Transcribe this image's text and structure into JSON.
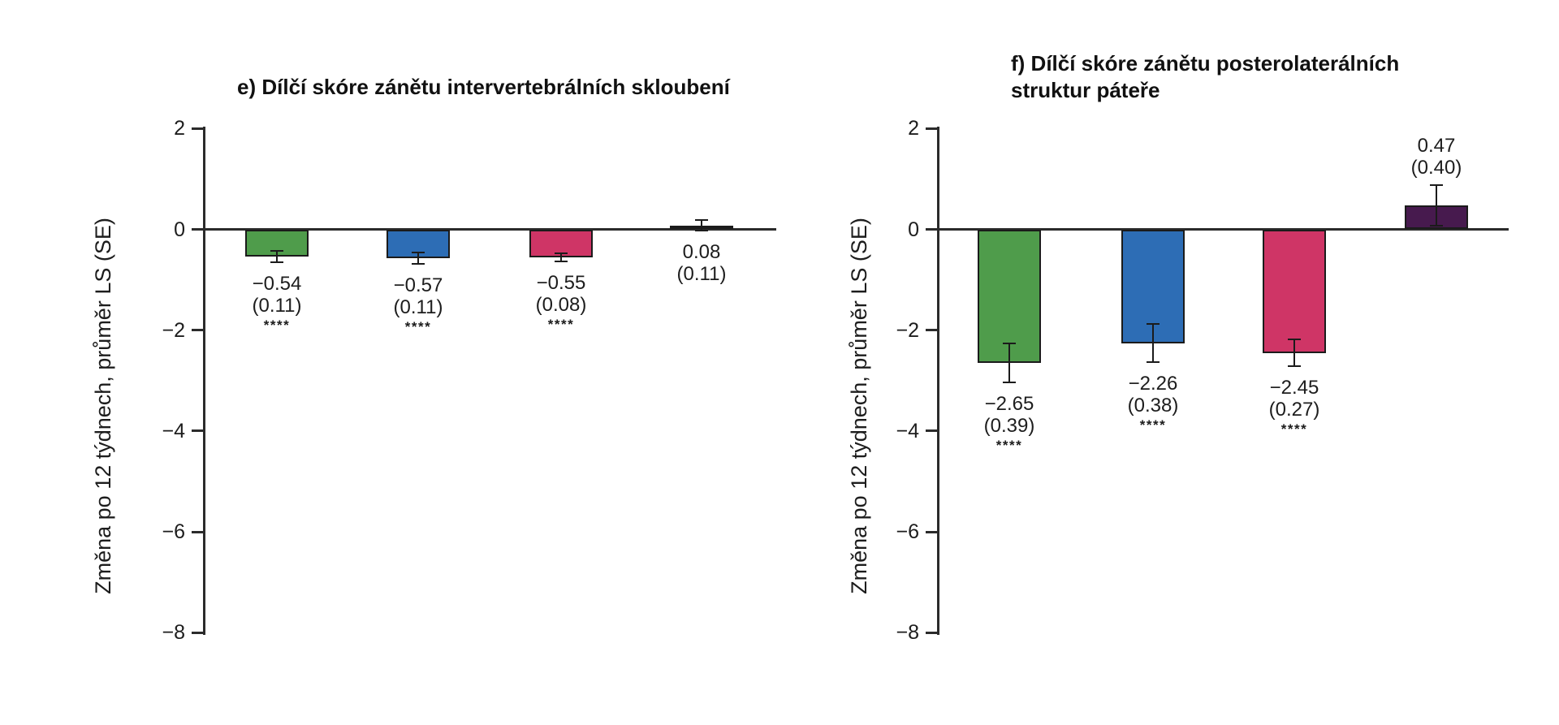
{
  "figure": {
    "background_color": "#ffffff",
    "axis_color": "#2b2b2b",
    "text_color": "#1d1d1d",
    "bar_border_color": "#1b1b1b"
  },
  "chart_data": [
    {
      "type": "bar",
      "panel": "e",
      "title_lines": [
        "e) Dílčí skóre zánětu intervertebrálních skloubení"
      ],
      "ylabel": "Změna po 12 týdnech, průměr LS (SE)",
      "ylim": [
        -8,
        2
      ],
      "yticks": [
        2,
        0,
        -2,
        -4,
        -6,
        -8
      ],
      "grid": false,
      "legend": "none",
      "bars": [
        {
          "value": -0.54,
          "se": 0.11,
          "value_label": "−0.54",
          "se_label": "(0.11)",
          "significance": "****",
          "color": "#4f9c4b"
        },
        {
          "value": -0.57,
          "se": 0.11,
          "value_label": "−0.57",
          "se_label": "(0.11)",
          "significance": "****",
          "color": "#2d6db5"
        },
        {
          "value": -0.55,
          "se": 0.08,
          "value_label": "−0.55",
          "se_label": "(0.08)",
          "significance": "****",
          "color": "#cf3566"
        },
        {
          "value": 0.08,
          "se": 0.11,
          "value_label": "0.08",
          "se_label": "(0.11)",
          "significance": "",
          "color": "#471a4e"
        }
      ]
    },
    {
      "type": "bar",
      "panel": "f",
      "title_lines": [
        "f) Dílčí skóre zánětu posterolaterálních",
        "struktur páteře"
      ],
      "ylabel": "Změna po 12 týdnech, průměr LS (SE)",
      "ylim": [
        -8,
        2
      ],
      "yticks": [
        2,
        0,
        -2,
        -4,
        -6,
        -8
      ],
      "grid": false,
      "legend": "none",
      "bars": [
        {
          "value": -2.65,
          "se": 0.39,
          "value_label": "−2.65",
          "se_label": "(0.39)",
          "significance": "****",
          "color": "#4f9c4b"
        },
        {
          "value": -2.26,
          "se": 0.38,
          "value_label": "−2.26",
          "se_label": "(0.38)",
          "significance": "****",
          "color": "#2d6db5"
        },
        {
          "value": -2.45,
          "se": 0.27,
          "value_label": "−2.45",
          "se_label": "(0.27)",
          "significance": "****",
          "color": "#cf3566"
        },
        {
          "value": 0.47,
          "se": 0.4,
          "value_label": "0.47",
          "se_label": "(0.40)",
          "significance": "",
          "color": "#471a4e"
        }
      ]
    }
  ]
}
